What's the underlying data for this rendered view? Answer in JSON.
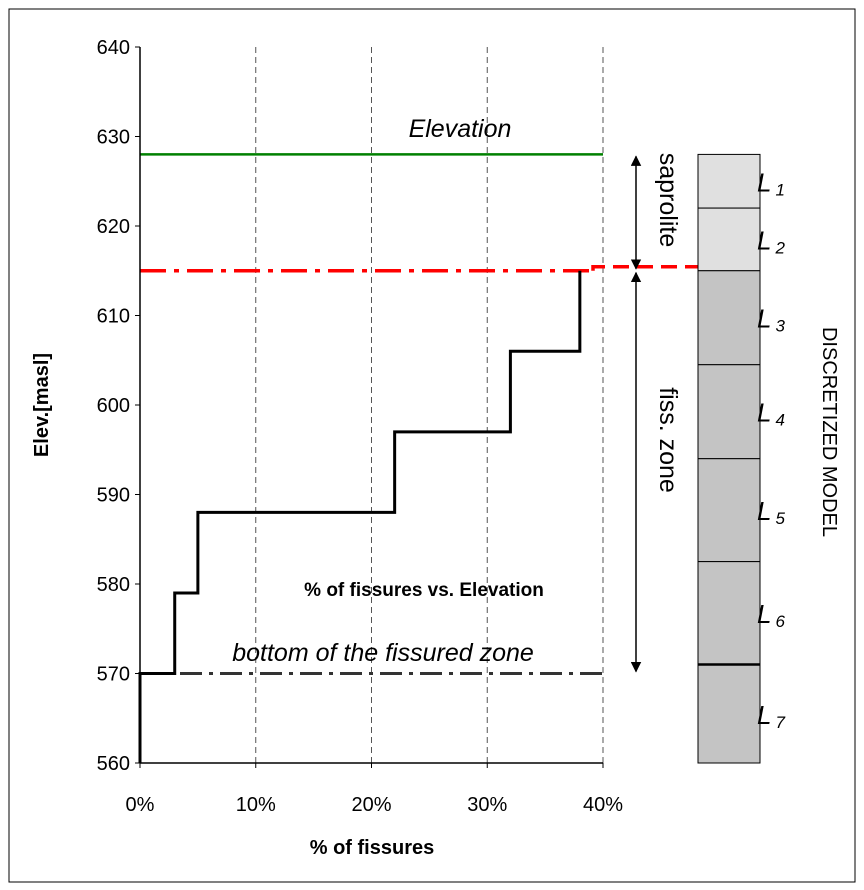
{
  "chart_data": {
    "type": "line",
    "xlabel": "% of fissures",
    "ylabel": "Elev.[masl]",
    "xlim": [
      0,
      40
    ],
    "ylim": [
      560,
      640
    ],
    "x_ticks": [
      "0%",
      "10%",
      "20%",
      "30%",
      "40%"
    ],
    "y_ticks": [
      "560",
      "570",
      "580",
      "590",
      "600",
      "610",
      "620",
      "630",
      "640"
    ],
    "grid": "vertical dashed",
    "series": [
      {
        "name": "% of fissures vs. Elevation",
        "style": "step",
        "color": "#000000",
        "x": [
          0,
          0,
          3,
          3,
          5,
          5,
          22,
          22,
          32,
          32,
          38,
          38
        ],
        "y": [
          560,
          570,
          570,
          579,
          579,
          588,
          588,
          597,
          597,
          606,
          606,
          615
        ]
      }
    ],
    "reference_lines": [
      {
        "label": "Elevation",
        "y": 628,
        "color": "#008000",
        "style": "solid"
      },
      {
        "label": "",
        "y": 615,
        "color": "#ff0000",
        "style": "dash-dot"
      },
      {
        "label": "bottom of the fissured zone",
        "y": 570,
        "color": "#000000",
        "style": "dash-dot"
      }
    ],
    "zones": [
      {
        "label": "saprolite",
        "from": 615,
        "to": 628
      },
      {
        "label": "fiss. zone",
        "from": 570,
        "to": 615
      }
    ],
    "discretized_model": {
      "title": "DISCRETIZED MODEL",
      "layers": [
        {
          "label": "L",
          "sub": "1",
          "top": 628,
          "bottom": 622,
          "color": "#e0e0e0"
        },
        {
          "label": "L",
          "sub": "2",
          "top": 622,
          "bottom": 615,
          "color": "#e0e0e0"
        },
        {
          "label": "L",
          "sub": "3",
          "top": 615,
          "bottom": 604.5,
          "color": "#c4c4c4"
        },
        {
          "label": "L",
          "sub": "4",
          "top": 604.5,
          "bottom": 594,
          "color": "#c4c4c4"
        },
        {
          "label": "L",
          "sub": "5",
          "top": 594,
          "bottom": 582.5,
          "color": "#c4c4c4"
        },
        {
          "label": "L",
          "sub": "6",
          "top": 582.5,
          "bottom": 571,
          "color": "#c4c4c4"
        },
        {
          "label": "L",
          "sub": "7",
          "top": 571,
          "bottom": 560,
          "color": "#c4c4c4"
        }
      ]
    },
    "annotations": {
      "elevation_label": "Elevation",
      "series_label": "% of fissures vs. Elevation",
      "bottom_label": "bottom of the fissured zone",
      "saprolite_label": "saprolite",
      "fiss_zone_label": "fiss. zone"
    }
  }
}
